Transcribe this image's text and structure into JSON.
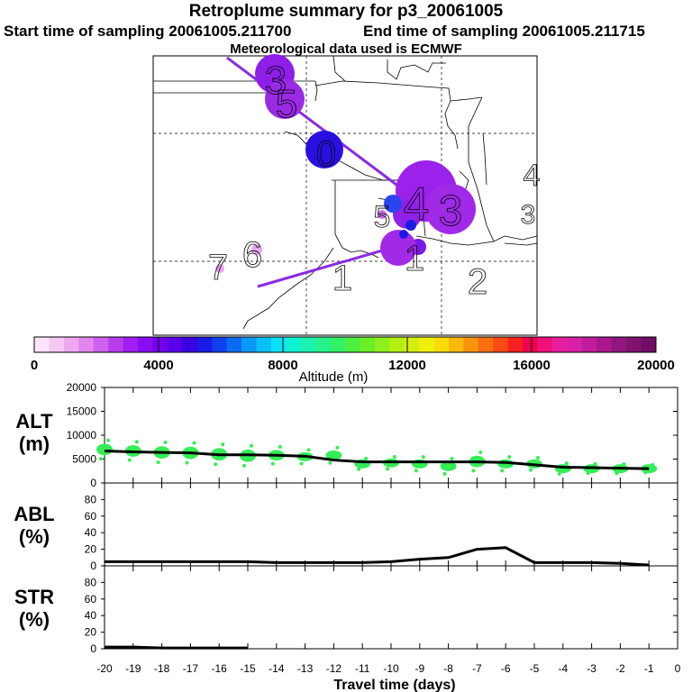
{
  "header": {
    "title": "Retroplume summary for p3_20061005",
    "start": "Start time of sampling 20061005.211700",
    "end": "End time of sampling 20061005.211715",
    "met": "Meteorological data used is ECMWF"
  },
  "colors": {
    "plume_line": "#8a2be2",
    "dots": "#33ee55",
    "line": "#000000"
  },
  "map": {
    "day_labels": [
      "3",
      "5",
      "0",
      "4",
      "3",
      "5",
      "1",
      "7",
      "6",
      "1",
      "2",
      "4",
      "3"
    ],
    "clusters": [
      {
        "label": "3",
        "color": "#8e1ee8",
        "size": "large"
      },
      {
        "label": "5",
        "color": "#9a2ae6",
        "size": "large"
      },
      {
        "label": "0",
        "color": "#2a10e0",
        "size": "large"
      },
      {
        "label": "4",
        "color": "#9a22ea",
        "size": "xlarge"
      },
      {
        "label": "3",
        "color": "#a02ae8",
        "size": "xlarge"
      },
      {
        "label": "5",
        "color": "#2a44f0",
        "size": "small"
      },
      {
        "label": "1",
        "color": "#7a1ae6",
        "size": "medium"
      },
      {
        "label": "1",
        "color": "#a22ae6",
        "size": "large"
      }
    ]
  },
  "colorbar": {
    "colors": [
      "#fde4fd",
      "#f6c8f6",
      "#eea8f2",
      "#e286ee",
      "#d060ee",
      "#b83cee",
      "#a01ef0",
      "#8a0cf2",
      "#7400ee",
      "#5a00e8",
      "#3a00e2",
      "#1a1ae6",
      "#1040ee",
      "#0a6af2",
      "#0a98f6",
      "#0abff8",
      "#06e2f6",
      "#0ef2d6",
      "#1cf2b0",
      "#26f28c",
      "#34f066",
      "#4cee40",
      "#6aee26",
      "#8ef01c",
      "#b2f012",
      "#d2f00c",
      "#eef00a",
      "#f8dc0a",
      "#f8b80c",
      "#f8940e",
      "#f87010",
      "#f84a14",
      "#f82020",
      "#f00050",
      "#f0107c",
      "#e81ea0",
      "#d820a8",
      "#c01c9c",
      "#a8188c",
      "#901680",
      "#801270",
      "#700e66"
    ],
    "ticks": [
      "0",
      "4000",
      "8000",
      "12000",
      "16000",
      "20000"
    ],
    "label": "Altitude  (m)"
  },
  "chart_data": [
    {
      "type": "line",
      "panel": "ALT",
      "ylabel": "ALT\n(m)",
      "ylabel_lines": [
        "ALT",
        "(m)"
      ],
      "xlim": [
        -20,
        0
      ],
      "ylim": [
        0,
        20000
      ],
      "yticks": [
        "0",
        "5000",
        "10000",
        "15000",
        "20000"
      ],
      "yticks_values": [
        0,
        5000,
        10000,
        15000,
        20000
      ],
      "line_x": [
        -20,
        -19,
        -18,
        -17,
        -16,
        -15,
        -14,
        -13,
        -12,
        -11,
        -10,
        -9,
        -8,
        -7,
        -6,
        -5,
        -4,
        -3,
        -2,
        -1
      ],
      "line_y": [
        6700,
        6500,
        6400,
        6300,
        5900,
        5900,
        5800,
        5600,
        4800,
        4400,
        4400,
        4400,
        4400,
        4400,
        4300,
        3800,
        3300,
        3200,
        3100,
        3000
      ],
      "scatter": {
        "x": [
          -20,
          -19,
          -18,
          -17,
          -16,
          -15,
          -14,
          -13,
          -12,
          -11,
          -10,
          -9,
          -8,
          -7,
          -6,
          -5,
          -4,
          -3,
          -2,
          -1
        ],
        "y": [
          7000,
          6700,
          6400,
          6300,
          6000,
          5700,
          5800,
          5500,
          5800,
          4000,
          4200,
          4000,
          3500,
          4500,
          4000,
          4000,
          3000,
          3000,
          3000,
          3000
        ],
        "spread": [
          2400,
          2400,
          2600,
          2600,
          2600,
          2600,
          2200,
          1800,
          2000,
          1400,
          1600,
          1800,
          2000,
          2400,
          1800,
          1600,
          1400,
          1200,
          1200,
          1000
        ]
      }
    },
    {
      "type": "line",
      "panel": "ABL",
      "ylabel_lines": [
        "ABL",
        "(%)"
      ],
      "xlim": [
        -20,
        0
      ],
      "ylim": [
        0,
        100
      ],
      "yticks": [
        "0",
        "20",
        "40",
        "60",
        "80"
      ],
      "yticks_values": [
        0,
        20,
        40,
        60,
        80
      ],
      "x": [
        -20,
        -19,
        -18,
        -17,
        -16,
        -15,
        -14,
        -13,
        -12,
        -11,
        -10,
        -9,
        -8,
        -7,
        -6,
        -5,
        -4,
        -3,
        -2,
        -1
      ],
      "y": [
        5,
        5,
        5,
        5,
        5,
        5,
        4,
        4,
        4,
        4,
        5,
        8,
        10,
        20,
        22,
        4,
        4,
        4,
        3,
        1
      ]
    },
    {
      "type": "line",
      "panel": "STR",
      "ylabel_lines": [
        "STR",
        "(%)"
      ],
      "xlim": [
        -20,
        0
      ],
      "ylim": [
        0,
        100
      ],
      "yticks": [
        "0",
        "20",
        "40",
        "60",
        "80"
      ],
      "yticks_values": [
        0,
        20,
        40,
        60,
        80
      ],
      "x": [
        -20,
        -19,
        -18,
        -17,
        -16,
        -15
      ],
      "y": [
        2,
        2,
        1,
        1,
        1,
        1
      ]
    }
  ],
  "xaxis": {
    "ticks": [
      "-20",
      "-19",
      "-18",
      "-17",
      "-16",
      "-15",
      "-14",
      "-13",
      "-12",
      "-11",
      "-10",
      "-9",
      "-8",
      "-7",
      "-6",
      "-5",
      "-4",
      "-3",
      "-2",
      "-1",
      "0"
    ],
    "tick_values": [
      -20,
      -19,
      -18,
      -17,
      -16,
      -15,
      -14,
      -13,
      -12,
      -11,
      -10,
      -9,
      -8,
      -7,
      -6,
      -5,
      -4,
      -3,
      -2,
      -1,
      0
    ],
    "label": "Travel time (days)"
  }
}
